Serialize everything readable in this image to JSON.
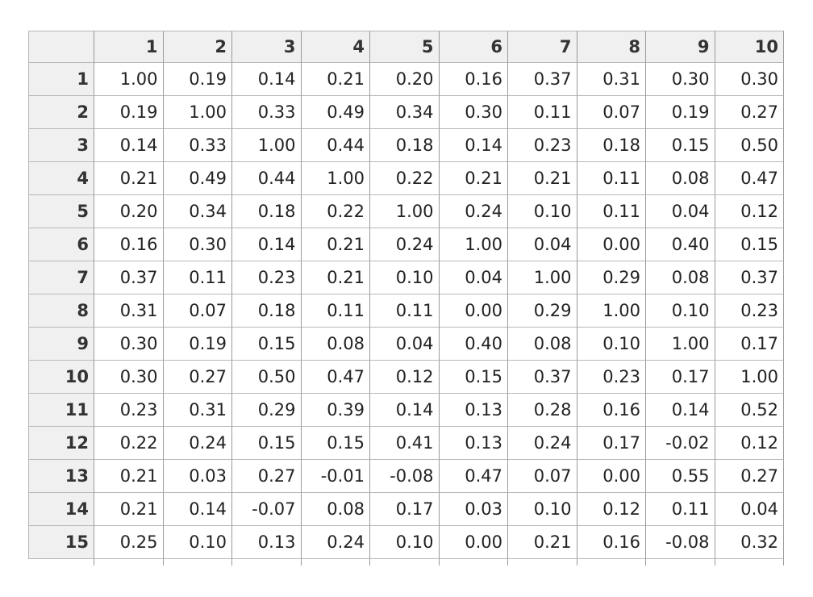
{
  "table": {
    "columns": [
      "1",
      "2",
      "3",
      "4",
      "5",
      "6",
      "7",
      "8",
      "9",
      "10"
    ],
    "row_labels": [
      "1",
      "2",
      "3",
      "4",
      "5",
      "6",
      "7",
      "8",
      "9",
      "10",
      "11",
      "12",
      "13",
      "14",
      "15"
    ],
    "rows": [
      [
        "1.00",
        "0.19",
        "0.14",
        "0.21",
        "0.20",
        "0.16",
        "0.37",
        "0.31",
        "0.30",
        "0.30"
      ],
      [
        "0.19",
        "1.00",
        "0.33",
        "0.49",
        "0.34",
        "0.30",
        "0.11",
        "0.07",
        "0.19",
        "0.27"
      ],
      [
        "0.14",
        "0.33",
        "1.00",
        "0.44",
        "0.18",
        "0.14",
        "0.23",
        "0.18",
        "0.15",
        "0.50"
      ],
      [
        "0.21",
        "0.49",
        "0.44",
        "1.00",
        "0.22",
        "0.21",
        "0.21",
        "0.11",
        "0.08",
        "0.47"
      ],
      [
        "0.20",
        "0.34",
        "0.18",
        "0.22",
        "1.00",
        "0.24",
        "0.10",
        "0.11",
        "0.04",
        "0.12"
      ],
      [
        "0.16",
        "0.30",
        "0.14",
        "0.21",
        "0.24",
        "1.00",
        "0.04",
        "0.00",
        "0.40",
        "0.15"
      ],
      [
        "0.37",
        "0.11",
        "0.23",
        "0.21",
        "0.10",
        "0.04",
        "1.00",
        "0.29",
        "0.08",
        "0.37"
      ],
      [
        "0.31",
        "0.07",
        "0.18",
        "0.11",
        "0.11",
        "0.00",
        "0.29",
        "1.00",
        "0.10",
        "0.23"
      ],
      [
        "0.30",
        "0.19",
        "0.15",
        "0.08",
        "0.04",
        "0.40",
        "0.08",
        "0.10",
        "1.00",
        "0.17"
      ],
      [
        "0.30",
        "0.27",
        "0.50",
        "0.47",
        "0.12",
        "0.15",
        "0.37",
        "0.23",
        "0.17",
        "1.00"
      ],
      [
        "0.23",
        "0.31",
        "0.29",
        "0.39",
        "0.14",
        "0.13",
        "0.28",
        "0.16",
        "0.14",
        "0.52"
      ],
      [
        "0.22",
        "0.24",
        "0.15",
        "0.15",
        "0.41",
        "0.13",
        "0.24",
        "0.17",
        "-0.02",
        "0.12"
      ],
      [
        "0.21",
        "0.03",
        "0.27",
        "-0.01",
        "-0.08",
        "0.47",
        "0.07",
        "0.00",
        "0.55",
        "0.27"
      ],
      [
        "0.21",
        "0.14",
        "-0.07",
        "0.08",
        "0.17",
        "0.03",
        "0.10",
        "0.12",
        "0.11",
        "0.04"
      ],
      [
        "0.25",
        "0.10",
        "0.13",
        "0.24",
        "0.10",
        "0.00",
        "0.21",
        "0.16",
        "-0.08",
        "0.32"
      ]
    ]
  }
}
